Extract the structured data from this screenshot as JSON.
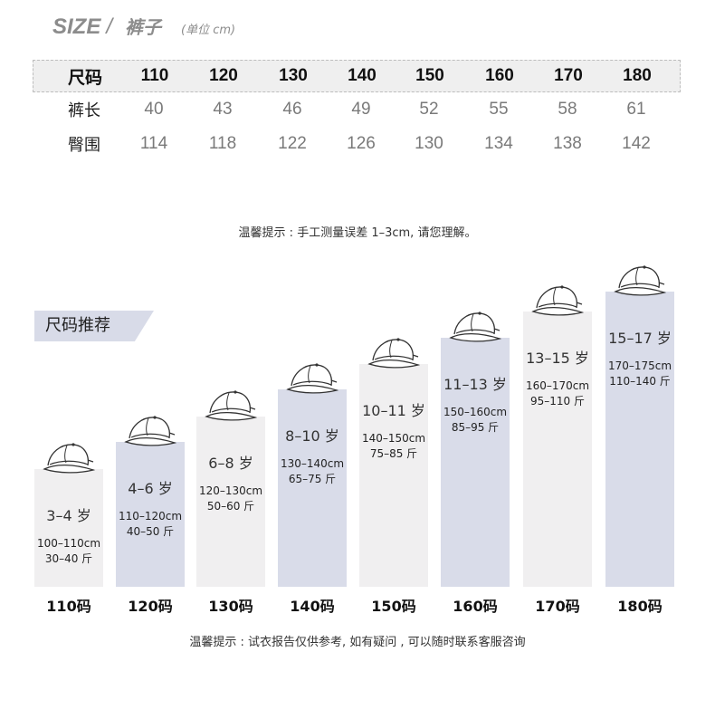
{
  "header": {
    "size": "SIZE",
    "slash": "/",
    "garment": "裤子",
    "unit": "(单位 cm)"
  },
  "size_table": {
    "head_label": "尺码",
    "sizes": [
      "110",
      "120",
      "130",
      "140",
      "150",
      "160",
      "170",
      "180"
    ],
    "rows": [
      {
        "label": "裤长",
        "values": [
          "40",
          "43",
          "46",
          "49",
          "52",
          "55",
          "58",
          "61"
        ]
      },
      {
        "label": "臀围",
        "values": [
          "114",
          "118",
          "122",
          "126",
          "130",
          "134",
          "138",
          "142"
        ]
      }
    ]
  },
  "tip_measure": "温馨提示 : 手工测量误差 1–3cm, 请您理解。",
  "recommend": {
    "title": "尺码推荐",
    "bars": [
      {
        "size": "110码",
        "age": "3–4 岁",
        "height": "100–110cm",
        "weight": "30–40 斤",
        "color": "#f0eff0",
        "tone": "light"
      },
      {
        "size": "120码",
        "age": "4–6 岁",
        "height": "110–120cm",
        "weight": "40–50 斤",
        "color": "#d9dce9",
        "tone": "blue"
      },
      {
        "size": "130码",
        "age": "6–8 岁",
        "height": "120–130cm",
        "weight": "50–60 斤",
        "color": "#f0eff0",
        "tone": "light"
      },
      {
        "size": "140码",
        "age": "8–10 岁",
        "height": "130–140cm",
        "weight": "65–75 斤",
        "color": "#d9dce9",
        "tone": "blue"
      },
      {
        "size": "150码",
        "age": "10–11 岁",
        "height": "140–150cm",
        "weight": "75–85 斤",
        "color": "#f0eff0",
        "tone": "light"
      },
      {
        "size": "160码",
        "age": "11–13 岁",
        "height": "150–160cm",
        "weight": "85–95 斤",
        "color": "#d9dce9",
        "tone": "blue"
      },
      {
        "size": "170码",
        "age": "13–15 岁",
        "height": "160–170cm",
        "weight": "95–110 斤",
        "color": "#f0eff0",
        "tone": "light"
      },
      {
        "size": "180码",
        "age": "15–17 岁",
        "height": "170–175cm",
        "weight": "110–140 斤",
        "color": "#d9dce9",
        "tone": "blue"
      }
    ]
  },
  "tip_report": "温馨提示 : 试衣报告仅供参考,  如有疑问 , 可以随时联系客服咨询"
}
